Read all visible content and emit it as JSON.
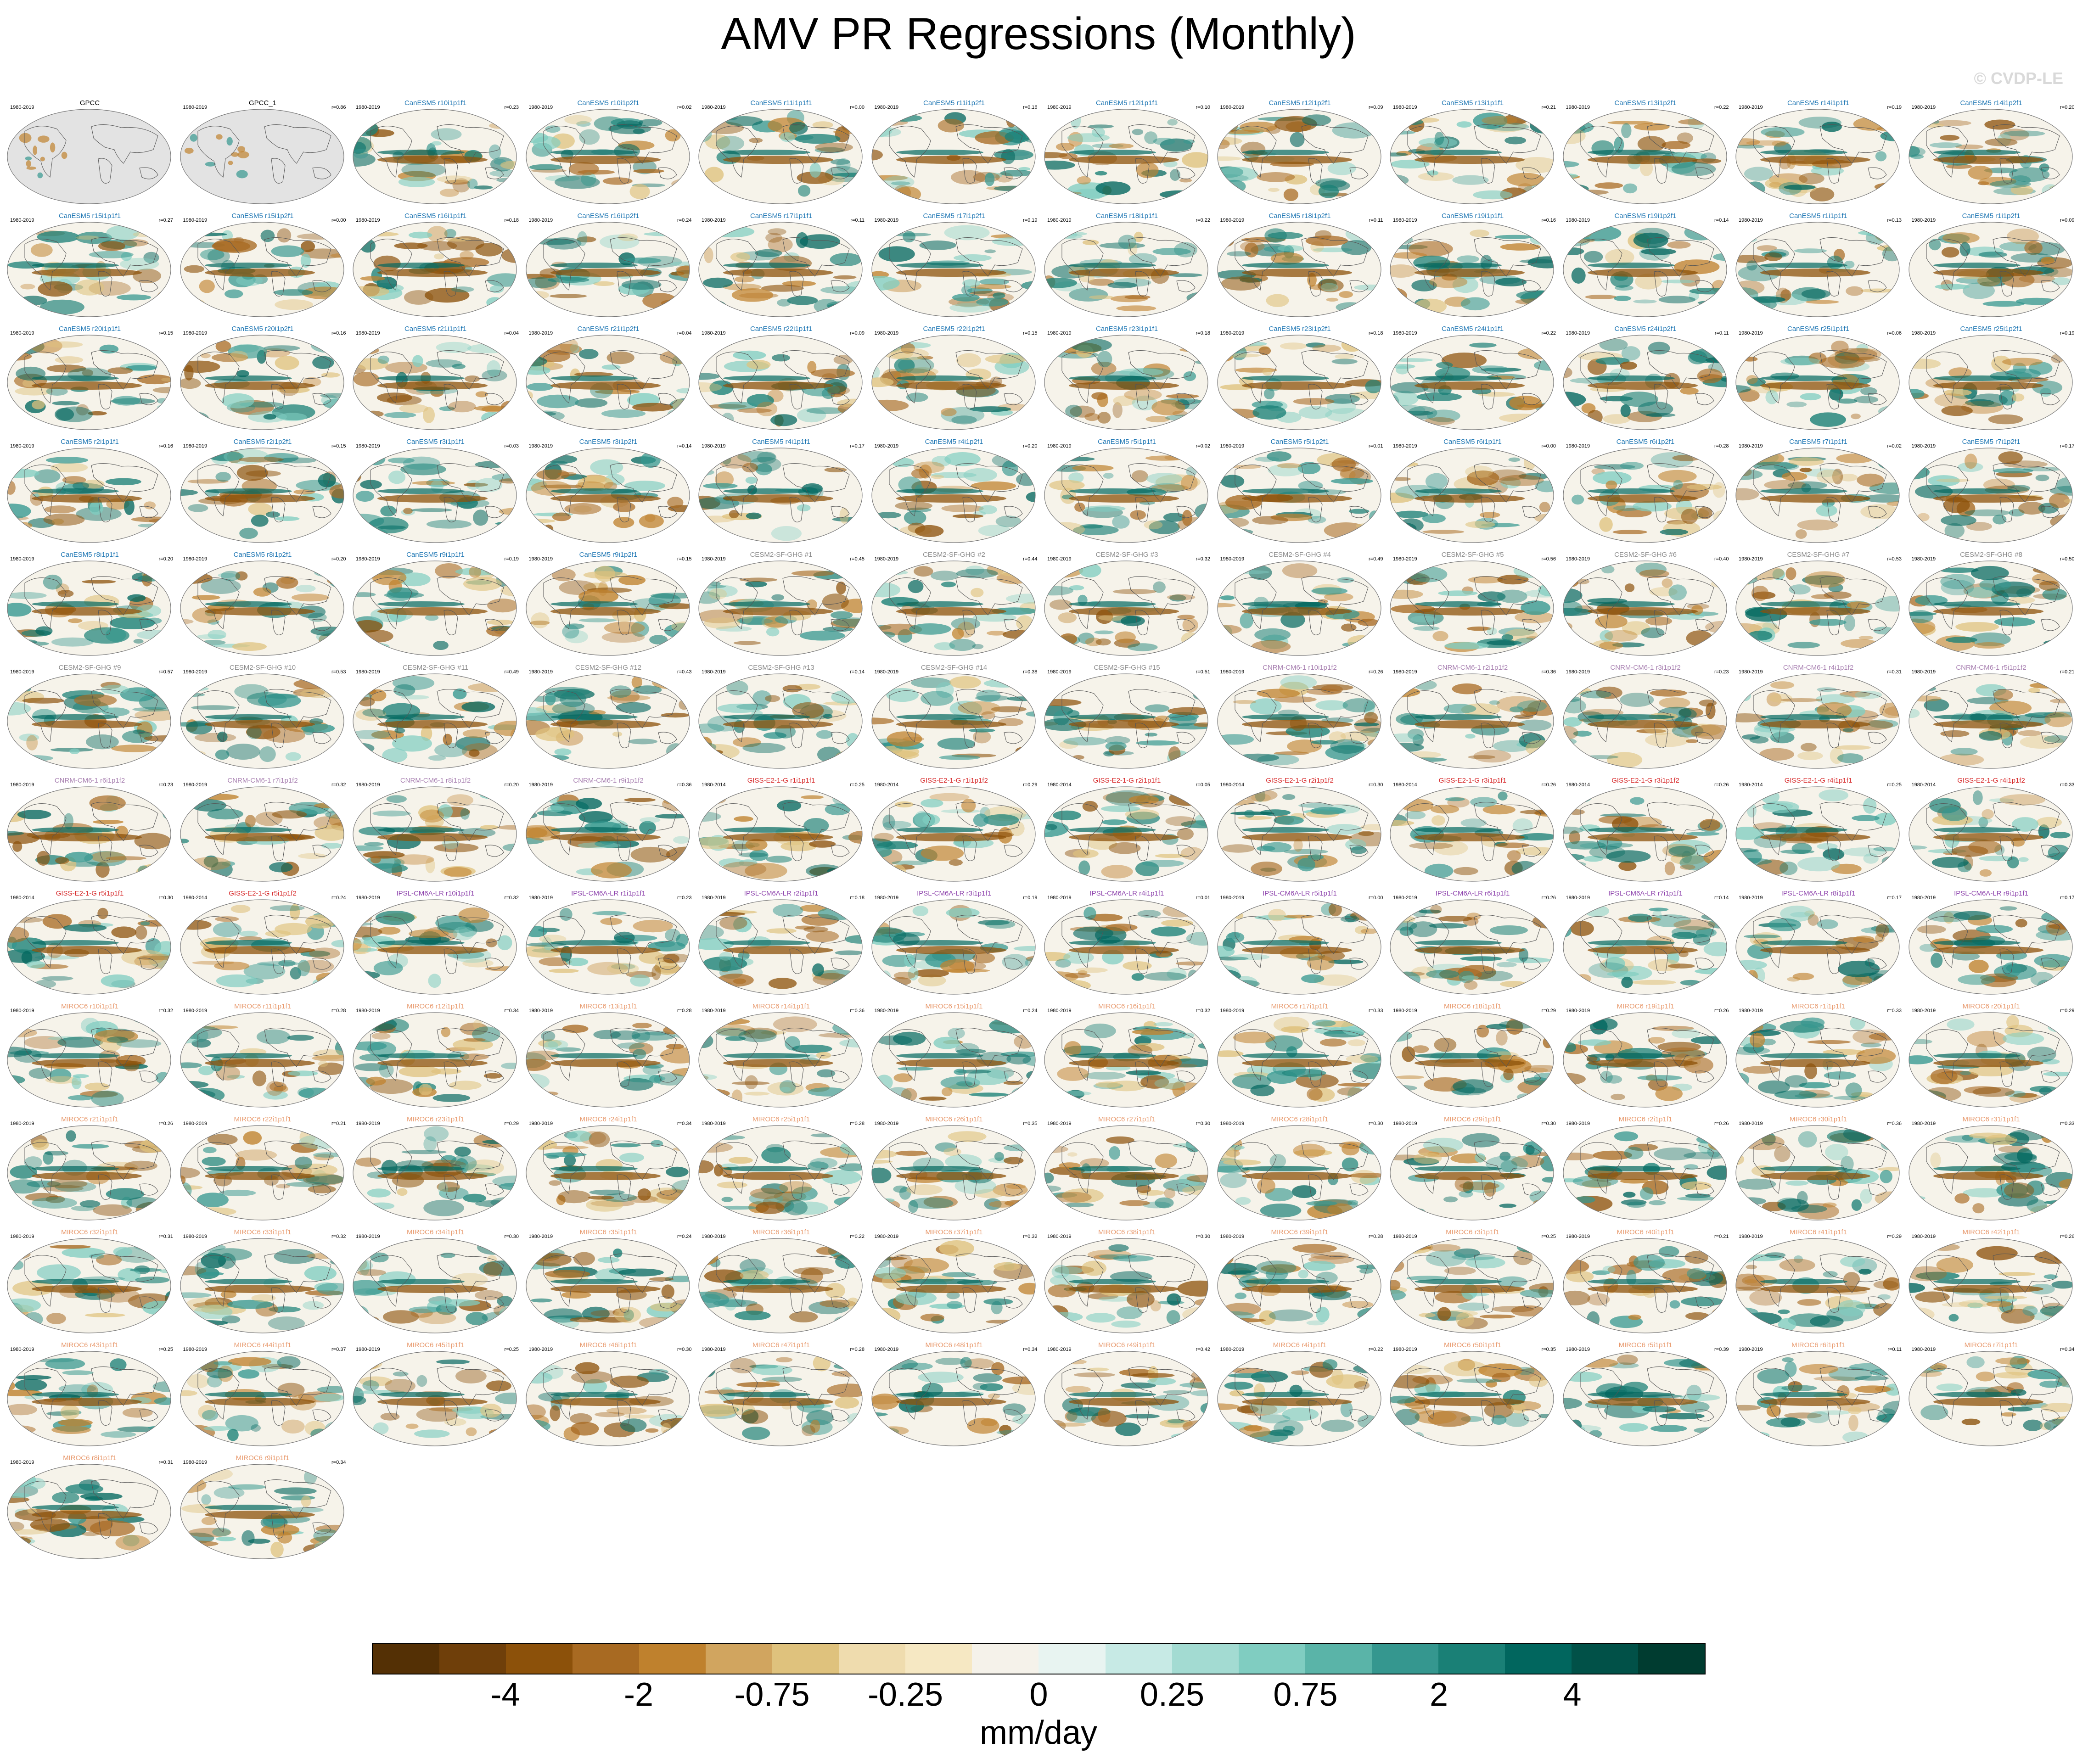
{
  "title": "AMV PR Regressions (Monthly)",
  "copyright": "© CVDP-LE",
  "units": "mm/day",
  "colorbar": {
    "colors": [
      "#543005",
      "#6f3f0a",
      "#8c510a",
      "#a86a22",
      "#bf812d",
      "#d1a55f",
      "#dfc27d",
      "#efdcae",
      "#f6e8c3",
      "#f5f2ea",
      "#e8f4f1",
      "#c7eae5",
      "#a3dbd2",
      "#80cdc1",
      "#5ab4a8",
      "#35978f",
      "#1a8076",
      "#01665e",
      "#015148",
      "#003c30"
    ],
    "tick_labels": [
      "-4",
      "-2",
      "-0.75",
      "-0.25",
      "0",
      "0.25",
      "0.75",
      "2",
      "4"
    ],
    "tick_index": [
      2,
      4,
      6,
      8,
      10,
      12,
      14,
      16,
      18
    ]
  },
  "panel_colors": {
    "obs": "#000000",
    "CanESM5": "#1f77b4",
    "CESM2": "#8a8a8a",
    "CNRM": "#a77fb0",
    "GISS": "#d62728",
    "IPSL": "#8e44ad",
    "MIROC6": "#e89a6e"
  },
  "panels": [
    {
      "t": "GPCC",
      "p": "1980-2019",
      "r": "",
      "g": "obs",
      "obs": true
    },
    {
      "t": "GPCC_1",
      "p": "1980-2019",
      "r": "r=0.86",
      "g": "obs",
      "obs": true
    },
    {
      "t": "CanESM5 r10i1p1f1",
      "p": "1980-2019",
      "r": "r=0.23",
      "g": "CanESM5"
    },
    {
      "t": "CanESM5 r10i1p2f1",
      "p": "1980-2019",
      "r": "r=0.02",
      "g": "CanESM5"
    },
    {
      "t": "CanESM5 r11i1p1f1",
      "p": "1980-2019",
      "r": "r=0.00",
      "g": "CanESM5"
    },
    {
      "t": "CanESM5 r11i1p2f1",
      "p": "1980-2019",
      "r": "r=0.16",
      "g": "CanESM5"
    },
    {
      "t": "CanESM5 r12i1p1f1",
      "p": "1980-2019",
      "r": "r=0.10",
      "g": "CanESM5"
    },
    {
      "t": "CanESM5 r12i1p2f1",
      "p": "1980-2019",
      "r": "r=0.09",
      "g": "CanESM5"
    },
    {
      "t": "CanESM5 r13i1p1f1",
      "p": "1980-2019",
      "r": "r=0.21",
      "g": "CanESM5"
    },
    {
      "t": "CanESM5 r13i1p2f1",
      "p": "1980-2019",
      "r": "r=0.22",
      "g": "CanESM5"
    },
    {
      "t": "CanESM5 r14i1p1f1",
      "p": "1980-2019",
      "r": "r=0.19",
      "g": "CanESM5"
    },
    {
      "t": "CanESM5 r14i1p2f1",
      "p": "1980-2019",
      "r": "r=0.20",
      "g": "CanESM5"
    },
    {
      "t": "CanESM5 r15i1p1f1",
      "p": "1980-2019",
      "r": "r=0.27",
      "g": "CanESM5"
    },
    {
      "t": "CanESM5 r15i1p2f1",
      "p": "1980-2019",
      "r": "r=0.00",
      "g": "CanESM5"
    },
    {
      "t": "CanESM5 r16i1p1f1",
      "p": "1980-2019",
      "r": "r=0.18",
      "g": "CanESM5"
    },
    {
      "t": "CanESM5 r16i1p2f1",
      "p": "1980-2019",
      "r": "r=0.24",
      "g": "CanESM5"
    },
    {
      "t": "CanESM5 r17i1p1f1",
      "p": "1980-2019",
      "r": "r=0.11",
      "g": "CanESM5"
    },
    {
      "t": "CanESM5 r17i1p2f1",
      "p": "1980-2019",
      "r": "r=0.19",
      "g": "CanESM5"
    },
    {
      "t": "CanESM5 r18i1p1f1",
      "p": "1980-2019",
      "r": "r=0.22",
      "g": "CanESM5"
    },
    {
      "t": "CanESM5 r18i1p2f1",
      "p": "1980-2019",
      "r": "r=0.11",
      "g": "CanESM5"
    },
    {
      "t": "CanESM5 r19i1p1f1",
      "p": "1980-2019",
      "r": "r=0.16",
      "g": "CanESM5"
    },
    {
      "t": "CanESM5 r19i1p2f1",
      "p": "1980-2019",
      "r": "r=0.14",
      "g": "CanESM5"
    },
    {
      "t": "CanESM5 r1i1p1f1",
      "p": "1980-2019",
      "r": "r=0.13",
      "g": "CanESM5"
    },
    {
      "t": "CanESM5 r1i1p2f1",
      "p": "1980-2019",
      "r": "r=0.09",
      "g": "CanESM5"
    },
    {
      "t": "CanESM5 r20i1p1f1",
      "p": "1980-2019",
      "r": "r=0.15",
      "g": "CanESM5"
    },
    {
      "t": "CanESM5 r20i1p2f1",
      "p": "1980-2019",
      "r": "r=0.16",
      "g": "CanESM5"
    },
    {
      "t": "CanESM5 r21i1p1f1",
      "p": "1980-2019",
      "r": "r=0.04",
      "g": "CanESM5"
    },
    {
      "t": "CanESM5 r21i1p2f1",
      "p": "1980-2019",
      "r": "r=0.04",
      "g": "CanESM5"
    },
    {
      "t": "CanESM5 r22i1p1f1",
      "p": "1980-2019",
      "r": "r=0.09",
      "g": "CanESM5"
    },
    {
      "t": "CanESM5 r22i1p2f1",
      "p": "1980-2019",
      "r": "r=0.15",
      "g": "CanESM5"
    },
    {
      "t": "CanESM5 r23i1p1f1",
      "p": "1980-2019",
      "r": "r=0.18",
      "g": "CanESM5"
    },
    {
      "t": "CanESM5 r23i1p2f1",
      "p": "1980-2019",
      "r": "r=0.18",
      "g": "CanESM5"
    },
    {
      "t": "CanESM5 r24i1p1f1",
      "p": "1980-2019",
      "r": "r=0.22",
      "g": "CanESM5"
    },
    {
      "t": "CanESM5 r24i1p2f1",
      "p": "1980-2019",
      "r": "r=0.11",
      "g": "CanESM5"
    },
    {
      "t": "CanESM5 r25i1p1f1",
      "p": "1980-2019",
      "r": "r=0.06",
      "g": "CanESM5"
    },
    {
      "t": "CanESM5 r25i1p2f1",
      "p": "1980-2019",
      "r": "r=0.19",
      "g": "CanESM5"
    },
    {
      "t": "CanESM5 r2i1p1f1",
      "p": "1980-2019",
      "r": "r=0.16",
      "g": "CanESM5"
    },
    {
      "t": "CanESM5 r2i1p2f1",
      "p": "1980-2019",
      "r": "r=0.15",
      "g": "CanESM5"
    },
    {
      "t": "CanESM5 r3i1p1f1",
      "p": "1980-2019",
      "r": "r=0.03",
      "g": "CanESM5"
    },
    {
      "t": "CanESM5 r3i1p2f1",
      "p": "1980-2019",
      "r": "r=0.14",
      "g": "CanESM5"
    },
    {
      "t": "CanESM5 r4i1p1f1",
      "p": "1980-2019",
      "r": "r=0.17",
      "g": "CanESM5"
    },
    {
      "t": "CanESM5 r4i1p2f1",
      "p": "1980-2019",
      "r": "r=0.20",
      "g": "CanESM5"
    },
    {
      "t": "CanESM5 r5i1p1f1",
      "p": "1980-2019",
      "r": "r=0.02",
      "g": "CanESM5"
    },
    {
      "t": "CanESM5 r5i1p2f1",
      "p": "1980-2019",
      "r": "r=0.01",
      "g": "CanESM5"
    },
    {
      "t": "CanESM5 r6i1p1f1",
      "p": "1980-2019",
      "r": "r=0.00",
      "g": "CanESM5"
    },
    {
      "t": "CanESM5 r6i1p2f1",
      "p": "1980-2019",
      "r": "r=0.28",
      "g": "CanESM5"
    },
    {
      "t": "CanESM5 r7i1p1f1",
      "p": "1980-2019",
      "r": "r=0.02",
      "g": "CanESM5"
    },
    {
      "t": "CanESM5 r7i1p2f1",
      "p": "1980-2019",
      "r": "r=0.17",
      "g": "CanESM5"
    },
    {
      "t": "CanESM5 r8i1p1f1",
      "p": "1980-2019",
      "r": "r=0.20",
      "g": "CanESM5"
    },
    {
      "t": "CanESM5 r8i1p2f1",
      "p": "1980-2019",
      "r": "r=0.20",
      "g": "CanESM5"
    },
    {
      "t": "CanESM5 r9i1p1f1",
      "p": "1980-2019",
      "r": "r=0.19",
      "g": "CanESM5"
    },
    {
      "t": "CanESM5 r9i1p2f1",
      "p": "1980-2019",
      "r": "r=0.15",
      "g": "CanESM5"
    },
    {
      "t": "CESM2-SF-GHG #1",
      "p": "1980-2019",
      "r": "r=0.45",
      "g": "CESM2"
    },
    {
      "t": "CESM2-SF-GHG #2",
      "p": "1980-2019",
      "r": "r=0.44",
      "g": "CESM2"
    },
    {
      "t": "CESM2-SF-GHG #3",
      "p": "1980-2019",
      "r": "r=0.32",
      "g": "CESM2"
    },
    {
      "t": "CESM2-SF-GHG #4",
      "p": "1980-2019",
      "r": "r=0.49",
      "g": "CESM2"
    },
    {
      "t": "CESM2-SF-GHG #5",
      "p": "1980-2019",
      "r": "r=0.56",
      "g": "CESM2"
    },
    {
      "t": "CESM2-SF-GHG #6",
      "p": "1980-2019",
      "r": "r=0.40",
      "g": "CESM2"
    },
    {
      "t": "CESM2-SF-GHG #7",
      "p": "1980-2019",
      "r": "r=0.53",
      "g": "CESM2"
    },
    {
      "t": "CESM2-SF-GHG #8",
      "p": "1980-2019",
      "r": "r=0.50",
      "g": "CESM2"
    },
    {
      "t": "CESM2-SF-GHG #9",
      "p": "1980-2019",
      "r": "r=0.57",
      "g": "CESM2"
    },
    {
      "t": "CESM2-SF-GHG #10",
      "p": "1980-2019",
      "r": "r=0.53",
      "g": "CESM2"
    },
    {
      "t": "CESM2-SF-GHG #11",
      "p": "1980-2019",
      "r": "r=0.49",
      "g": "CESM2"
    },
    {
      "t": "CESM2-SF-GHG #12",
      "p": "1980-2019",
      "r": "r=0.43",
      "g": "CESM2"
    },
    {
      "t": "CESM2-SF-GHG #13",
      "p": "1980-2019",
      "r": "r=0.14",
      "g": "CESM2"
    },
    {
      "t": "CESM2-SF-GHG #14",
      "p": "1980-2019",
      "r": "r=0.38",
      "g": "CESM2"
    },
    {
      "t": "CESM2-SF-GHG #15",
      "p": "1980-2019",
      "r": "r=0.51",
      "g": "CESM2"
    },
    {
      "t": "CNRM-CM6-1 r10i1p1f2",
      "p": "1980-2019",
      "r": "r=0.26",
      "g": "CNRM"
    },
    {
      "t": "CNRM-CM6-1 r2i1p1f2",
      "p": "1980-2019",
      "r": "r=0.36",
      "g": "CNRM"
    },
    {
      "t": "CNRM-CM6-1 r3i1p1f2",
      "p": "1980-2019",
      "r": "r=0.23",
      "g": "CNRM"
    },
    {
      "t": "CNRM-CM6-1 r4i1p1f2",
      "p": "1980-2019",
      "r": "r=0.31",
      "g": "CNRM"
    },
    {
      "t": "CNRM-CM6-1 r5i1p1f2",
      "p": "1980-2019",
      "r": "r=0.21",
      "g": "CNRM"
    },
    {
      "t": "CNRM-CM6-1 r6i1p1f2",
      "p": "1980-2019",
      "r": "r=0.23",
      "g": "CNRM"
    },
    {
      "t": "CNRM-CM6-1 r7i1p1f2",
      "p": "1980-2019",
      "r": "r=0.32",
      "g": "CNRM"
    },
    {
      "t": "CNRM-CM6-1 r8i1p1f2",
      "p": "1980-2019",
      "r": "r=0.20",
      "g": "CNRM"
    },
    {
      "t": "CNRM-CM6-1 r9i1p1f2",
      "p": "1980-2019",
      "r": "r=0.36",
      "g": "CNRM"
    },
    {
      "t": "GISS-E2-1-G r1i1p1f1",
      "p": "1980-2014",
      "r": "r=0.25",
      "g": "GISS"
    },
    {
      "t": "GISS-E2-1-G r1i1p1f2",
      "p": "1980-2014",
      "r": "r=0.29",
      "g": "GISS"
    },
    {
      "t": "GISS-E2-1-G r2i1p1f1",
      "p": "1980-2014",
      "r": "r=0.05",
      "g": "GISS"
    },
    {
      "t": "GISS-E2-1-G r2i1p1f2",
      "p": "1980-2014",
      "r": "r=0.30",
      "g": "GISS"
    },
    {
      "t": "GISS-E2-1-G r3i1p1f1",
      "p": "1980-2014",
      "r": "r=0.26",
      "g": "GISS"
    },
    {
      "t": "GISS-E2-1-G r3i1p1f2",
      "p": "1980-2014",
      "r": "r=0.26",
      "g": "GISS"
    },
    {
      "t": "GISS-E2-1-G r4i1p1f1",
      "p": "1980-2014",
      "r": "r=0.25",
      "g": "GISS"
    },
    {
      "t": "GISS-E2-1-G r4i1p1f2",
      "p": "1980-2014",
      "r": "r=0.33",
      "g": "GISS"
    },
    {
      "t": "GISS-E2-1-G r5i1p1f1",
      "p": "1980-2014",
      "r": "r=0.30",
      "g": "GISS"
    },
    {
      "t": "GISS-E2-1-G r5i1p1f2",
      "p": "1980-2014",
      "r": "r=0.24",
      "g": "GISS"
    },
    {
      "t": "IPSL-CM6A-LR r10i1p1f1",
      "p": "1980-2019",
      "r": "r=0.32",
      "g": "IPSL"
    },
    {
      "t": "IPSL-CM6A-LR r1i1p1f1",
      "p": "1980-2019",
      "r": "r=0.23",
      "g": "IPSL"
    },
    {
      "t": "IPSL-CM6A-LR r2i1p1f1",
      "p": "1980-2019",
      "r": "r=0.18",
      "g": "IPSL"
    },
    {
      "t": "IPSL-CM6A-LR r3i1p1f1",
      "p": "1980-2019",
      "r": "r=0.19",
      "g": "IPSL"
    },
    {
      "t": "IPSL-CM6A-LR r4i1p1f1",
      "p": "1980-2019",
      "r": "r=0.01",
      "g": "IPSL"
    },
    {
      "t": "IPSL-CM6A-LR r5i1p1f1",
      "p": "1980-2019",
      "r": "r=0.00",
      "g": "IPSL"
    },
    {
      "t": "IPSL-CM6A-LR r6i1p1f1",
      "p": "1980-2019",
      "r": "r=0.26",
      "g": "IPSL"
    },
    {
      "t": "IPSL-CM6A-LR r7i1p1f1",
      "p": "1980-2019",
      "r": "r=0.14",
      "g": "IPSL"
    },
    {
      "t": "IPSL-CM6A-LR r8i1p1f1",
      "p": "1980-2019",
      "r": "r=0.17",
      "g": "IPSL"
    },
    {
      "t": "IPSL-CM6A-LR r9i1p1f1",
      "p": "1980-2019",
      "r": "r=0.17",
      "g": "IPSL"
    },
    {
      "t": "MIROC6 r10i1p1f1",
      "p": "1980-2019",
      "r": "r=0.32",
      "g": "MIROC6"
    },
    {
      "t": "MIROC6 r11i1p1f1",
      "p": "1980-2019",
      "r": "r=0.28",
      "g": "MIROC6"
    },
    {
      "t": "MIROC6 r12i1p1f1",
      "p": "1980-2019",
      "r": "r=0.34",
      "g": "MIROC6"
    },
    {
      "t": "MIROC6 r13i1p1f1",
      "p": "1980-2019",
      "r": "r=0.28",
      "g": "MIROC6"
    },
    {
      "t": "MIROC6 r14i1p1f1",
      "p": "1980-2019",
      "r": "r=0.36",
      "g": "MIROC6"
    },
    {
      "t": "MIROC6 r15i1p1f1",
      "p": "1980-2019",
      "r": "r=0.24",
      "g": "MIROC6"
    },
    {
      "t": "MIROC6 r16i1p1f1",
      "p": "1980-2019",
      "r": "r=0.32",
      "g": "MIROC6"
    },
    {
      "t": "MIROC6 r17i1p1f1",
      "p": "1980-2019",
      "r": "r=0.33",
      "g": "MIROC6"
    },
    {
      "t": "MIROC6 r18i1p1f1",
      "p": "1980-2019",
      "r": "r=0.29",
      "g": "MIROC6"
    },
    {
      "t": "MIROC6 r19i1p1f1",
      "p": "1980-2019",
      "r": "r=0.26",
      "g": "MIROC6"
    },
    {
      "t": "MIROC6 r1i1p1f1",
      "p": "1980-2019",
      "r": "r=0.33",
      "g": "MIROC6"
    },
    {
      "t": "MIROC6 r20i1p1f1",
      "p": "1980-2019",
      "r": "r=0.29",
      "g": "MIROC6"
    },
    {
      "t": "MIROC6 r21i1p1f1",
      "p": "1980-2019",
      "r": "r=0.26",
      "g": "MIROC6"
    },
    {
      "t": "MIROC6 r22i1p1f1",
      "p": "1980-2019",
      "r": "r=0.21",
      "g": "MIROC6"
    },
    {
      "t": "MIROC6 r23i1p1f1",
      "p": "1980-2019",
      "r": "r=0.29",
      "g": "MIROC6"
    },
    {
      "t": "MIROC6 r24i1p1f1",
      "p": "1980-2019",
      "r": "r=0.34",
      "g": "MIROC6"
    },
    {
      "t": "MIROC6 r25i1p1f1",
      "p": "1980-2019",
      "r": "r=0.28",
      "g": "MIROC6"
    },
    {
      "t": "MIROC6 r26i1p1f1",
      "p": "1980-2019",
      "r": "r=0.35",
      "g": "MIROC6"
    },
    {
      "t": "MIROC6 r27i1p1f1",
      "p": "1980-2019",
      "r": "r=0.30",
      "g": "MIROC6"
    },
    {
      "t": "MIROC6 r28i1p1f1",
      "p": "1980-2019",
      "r": "r=0.30",
      "g": "MIROC6"
    },
    {
      "t": "MIROC6 r29i1p1f1",
      "p": "1980-2019",
      "r": "r=0.30",
      "g": "MIROC6"
    },
    {
      "t": "MIROC6 r2i1p1f1",
      "p": "1980-2019",
      "r": "r=0.26",
      "g": "MIROC6"
    },
    {
      "t": "MIROC6 r30i1p1f1",
      "p": "1980-2019",
      "r": "r=0.36",
      "g": "MIROC6"
    },
    {
      "t": "MIROC6 r31i1p1f1",
      "p": "1980-2019",
      "r": "r=0.33",
      "g": "MIROC6"
    },
    {
      "t": "MIROC6 r32i1p1f1",
      "p": "1980-2019",
      "r": "r=0.31",
      "g": "MIROC6"
    },
    {
      "t": "MIROC6 r33i1p1f1",
      "p": "1980-2019",
      "r": "r=0.32",
      "g": "MIROC6"
    },
    {
      "t": "MIROC6 r34i1p1f1",
      "p": "1980-2019",
      "r": "r=0.30",
      "g": "MIROC6"
    },
    {
      "t": "MIROC6 r35i1p1f1",
      "p": "1980-2019",
      "r": "r=0.24",
      "g": "MIROC6"
    },
    {
      "t": "MIROC6 r36i1p1f1",
      "p": "1980-2019",
      "r": "r=0.22",
      "g": "MIROC6"
    },
    {
      "t": "MIROC6 r37i1p1f1",
      "p": "1980-2019",
      "r": "r=0.32",
      "g": "MIROC6"
    },
    {
      "t": "MIROC6 r38i1p1f1",
      "p": "1980-2019",
      "r": "r=0.30",
      "g": "MIROC6"
    },
    {
      "t": "MIROC6 r39i1p1f1",
      "p": "1980-2019",
      "r": "r=0.28",
      "g": "MIROC6"
    },
    {
      "t": "MIROC6 r3i1p1f1",
      "p": "1980-2019",
      "r": "r=0.25",
      "g": "MIROC6"
    },
    {
      "t": "MIROC6 r40i1p1f1",
      "p": "1980-2019",
      "r": "r=0.21",
      "g": "MIROC6"
    },
    {
      "t": "MIROC6 r41i1p1f1",
      "p": "1980-2019",
      "r": "r=0.29",
      "g": "MIROC6"
    },
    {
      "t": "MIROC6 r42i1p1f1",
      "p": "1980-2019",
      "r": "r=0.26",
      "g": "MIROC6"
    },
    {
      "t": "MIROC6 r43i1p1f1",
      "p": "1980-2019",
      "r": "r=0.25",
      "g": "MIROC6"
    },
    {
      "t": "MIROC6 r44i1p1f1",
      "p": "1980-2019",
      "r": "r=0.37",
      "g": "MIROC6"
    },
    {
      "t": "MIROC6 r45i1p1f1",
      "p": "1980-2019",
      "r": "r=0.25",
      "g": "MIROC6"
    },
    {
      "t": "MIROC6 r46i1p1f1",
      "p": "1980-2019",
      "r": "r=0.30",
      "g": "MIROC6"
    },
    {
      "t": "MIROC6 r47i1p1f1",
      "p": "1980-2019",
      "r": "r=0.28",
      "g": "MIROC6"
    },
    {
      "t": "MIROC6 r48i1p1f1",
      "p": "1980-2019",
      "r": "r=0.34",
      "g": "MIROC6"
    },
    {
      "t": "MIROC6 r49i1p1f1",
      "p": "1980-2019",
      "r": "r=0.42",
      "g": "MIROC6"
    },
    {
      "t": "MIROC6 r4i1p1f1",
      "p": "1980-2019",
      "r": "r=0.22",
      "g": "MIROC6"
    },
    {
      "t": "MIROC6 r50i1p1f1",
      "p": "1980-2019",
      "r": "r=0.35",
      "g": "MIROC6"
    },
    {
      "t": "MIROC6 r5i1p1f1",
      "p": "1980-2019",
      "r": "r=0.39",
      "g": "MIROC6"
    },
    {
      "t": "MIROC6 r6i1p1f1",
      "p": "1980-2019",
      "r": "r=0.11",
      "g": "MIROC6"
    },
    {
      "t": "MIROC6 r7i1p1f1",
      "p": "1980-2019",
      "r": "r=0.34",
      "g": "MIROC6"
    },
    {
      "t": "MIROC6 r8i1p1f1",
      "p": "1980-2019",
      "r": "r=0.31",
      "g": "MIROC6"
    },
    {
      "t": "MIROC6 r9i1p1f1",
      "p": "1980-2019",
      "r": "r=0.34",
      "g": "MIROC6"
    }
  ]
}
